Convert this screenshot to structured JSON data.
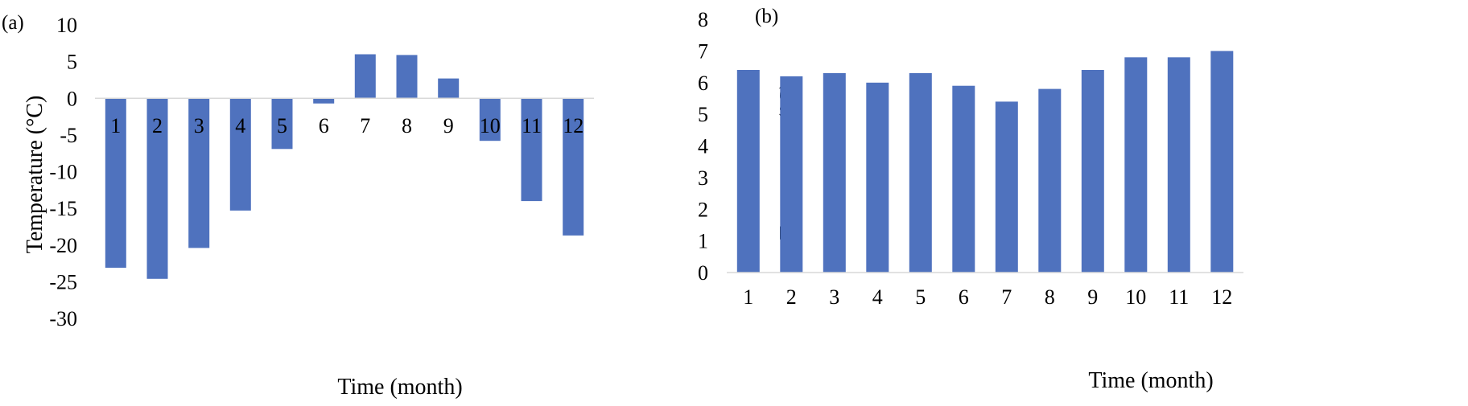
{
  "chart_data": [
    {
      "type": "bar",
      "panel_label": "(a)",
      "title": "",
      "xlabel": "Time (month)",
      "ylabel": "Temperature (°C)",
      "categories": [
        "1",
        "2",
        "3",
        "4",
        "5",
        "6",
        "7",
        "8",
        "9",
        "10",
        "11",
        "12"
      ],
      "values": [
        -23.1,
        -24.6,
        -20.4,
        -15.3,
        -6.9,
        -0.7,
        6.0,
        5.9,
        2.7,
        -5.8,
        -14.0,
        -18.7
      ],
      "ylim": [
        -30,
        10
      ],
      "yticks": [
        10,
        5,
        0,
        -5,
        -10,
        -15,
        -20,
        -25,
        -30
      ],
      "grid": false,
      "legend": "none",
      "bar_color": "#4F72BE",
      "axis_color": "#D9D9D9"
    },
    {
      "type": "bar",
      "panel_label": "(b)",
      "title": "",
      "xlabel": "Time (month)",
      "ylabel": "Temperature (°C)",
      "categories": [
        "1",
        "2",
        "3",
        "4",
        "5",
        "6",
        "7",
        "8",
        "9",
        "10",
        "11",
        "12"
      ],
      "values": [
        6.4,
        6.2,
        6.3,
        6.0,
        6.3,
        5.9,
        5.4,
        5.8,
        6.4,
        6.8,
        6.8,
        7.0
      ],
      "ylim": [
        0,
        8
      ],
      "yticks": [
        8,
        7,
        6,
        5,
        4,
        3,
        2,
        1,
        0
      ],
      "grid": false,
      "legend": "none",
      "bar_color": "#4F72BE",
      "axis_color": "#D9D9D9"
    }
  ]
}
